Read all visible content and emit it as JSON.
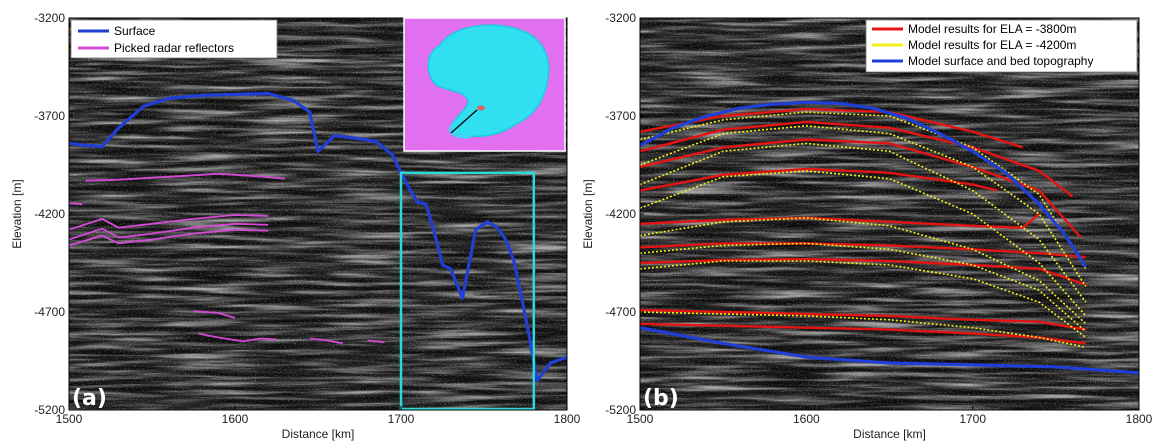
{
  "chart_data": [
    {
      "id": "a",
      "type": "line",
      "panel_label": "(a)",
      "xlabel": "Distance [km]",
      "ylabel": "Elevation [m]",
      "xlim": [
        1500,
        1800
      ],
      "ylim": [
        -5200,
        -3200
      ],
      "xticks": [
        "1500",
        "1600",
        "1700",
        "1800"
      ],
      "yticks": [
        "-3200",
        "-3700",
        "-4200",
        "-4700",
        "-5200"
      ],
      "legend_position": "top-left",
      "background": "radargram (grayscale)",
      "series": [
        {
          "name": "Surface",
          "color": "#1f3fd6",
          "x": [
            1500,
            1510,
            1520,
            1530,
            1545,
            1560,
            1580,
            1600,
            1620,
            1635,
            1645,
            1650,
            1660,
            1670,
            1685,
            1695,
            1700,
            1705,
            1710,
            1715,
            1720,
            1725,
            1730,
            1737,
            1745,
            1752,
            1758,
            1763,
            1768,
            1772,
            1777,
            1782,
            1790,
            1800
          ],
          "y": [
            -3840,
            -3850,
            -3855,
            -3760,
            -3650,
            -3610,
            -3595,
            -3590,
            -3585,
            -3620,
            -3680,
            -3880,
            -3800,
            -3810,
            -3830,
            -3900,
            -3990,
            -4070,
            -4140,
            -4150,
            -4290,
            -4460,
            -4480,
            -4630,
            -4280,
            -4240,
            -4270,
            -4330,
            -4440,
            -4600,
            -4810,
            -5050,
            -4960,
            -4930
          ]
        },
        {
          "name": "Picked radar reflectors",
          "color": "#d44ad4",
          "segments": [
            {
              "x": [
                1510,
                1530,
                1550,
                1570,
                1590,
                1610,
                1630
              ],
              "y": [
                -4030,
                -4025,
                -4015,
                -4005,
                -3995,
                -4005,
                -4020
              ]
            },
            {
              "x": [
                1500,
                1508
              ],
              "y": [
                -4145,
                -4150
              ]
            },
            {
              "x": [
                1500,
                1520,
                1530,
                1550,
                1575,
                1600,
                1620
              ],
              "y": [
                -4280,
                -4225,
                -4270,
                -4250,
                -4225,
                -4205,
                -4210
              ]
            },
            {
              "x": [
                1500,
                1520,
                1530,
                1550,
                1575,
                1600,
                1620
              ],
              "y": [
                -4330,
                -4275,
                -4320,
                -4300,
                -4270,
                -4250,
                -4255
              ]
            },
            {
              "x": [
                1500,
                1520,
                1530,
                1550,
                1575,
                1600,
                1620
              ],
              "y": [
                -4360,
                -4310,
                -4350,
                -4330,
                -4300,
                -4280,
                -4285
              ]
            },
            {
              "x": [
                1575,
                1590,
                1600
              ],
              "y": [
                -4695,
                -4705,
                -4730
              ]
            },
            {
              "x": [
                1578,
                1590,
                1605,
                1615,
                1625
              ],
              "y": [
                -4810,
                -4830,
                -4850,
                -4835,
                -4840
              ]
            },
            {
              "x": [
                1645,
                1655,
                1665
              ],
              "y": [
                -4835,
                -4845,
                -4860
              ]
            },
            {
              "x": [
                1680,
                1690
              ],
              "y": [
                -4845,
                -4855
              ]
            }
          ]
        }
      ],
      "highlight_box": {
        "x": [
          1700,
          1780
        ],
        "y": [
          -5200,
          -3990
        ],
        "color": "#2fd8d8"
      },
      "inset": {
        "description_color_land": "#e070f0",
        "description_color_ice": "#30e0f0"
      }
    },
    {
      "id": "b",
      "type": "line",
      "panel_label": "(b)",
      "xlabel": "Distance [km]",
      "ylabel": "Elevation [m]",
      "xlim": [
        1500,
        1800
      ],
      "ylim": [
        -5200,
        -3200
      ],
      "xticks": [
        "1500",
        "1600",
        "1700",
        "1800"
      ],
      "yticks": [
        "-3200",
        "-3700",
        "-4200",
        "-4700",
        "-5200"
      ],
      "legend_position": "top-right",
      "background": "radargram (grayscale)",
      "series": [
        {
          "name": "Model results for ELA = -3800m",
          "color": "#e41414",
          "layers": [
            {
              "x": [
                1500,
                1550,
                1600,
                1650,
                1700,
                1730
              ],
              "y": [
                -3780,
                -3700,
                -3665,
                -3680,
                -3780,
                -3860
              ]
            },
            {
              "x": [
                1500,
                1550,
                1600,
                1650,
                1700,
                1740,
                1760
              ],
              "y": [
                -3880,
                -3770,
                -3730,
                -3760,
                -3860,
                -3980,
                -4110
              ]
            },
            {
              "x": [
                1500,
                1550,
                1600,
                1650,
                1700,
                1740,
                1765
              ],
              "y": [
                -3960,
                -3860,
                -3820,
                -3840,
                -3960,
                -4080,
                -4320
              ]
            },
            {
              "x": [
                1500,
                1550,
                1600,
                1650,
                1700,
                1715
              ],
              "y": [
                -4080,
                -4000,
                -3970,
                -3990,
                -4050,
                -4080
              ]
            },
            {
              "x": [
                1500,
                1550,
                1600,
                1650,
                1700,
                1730,
                1740
              ],
              "y": [
                -4250,
                -4230,
                -4220,
                -4240,
                -4260,
                -4270,
                -4200
              ]
            },
            {
              "x": [
                1500,
                1550,
                1600,
                1650,
                1700,
                1740,
                1768
              ],
              "y": [
                -4370,
                -4350,
                -4350,
                -4360,
                -4380,
                -4400,
                -4420
              ]
            },
            {
              "x": [
                1500,
                1550,
                1600,
                1650,
                1700,
                1740,
                1768
              ],
              "y": [
                -4450,
                -4435,
                -4430,
                -4440,
                -4460,
                -4480,
                -4560
              ]
            },
            {
              "x": [
                1500,
                1550,
                1600,
                1650,
                1700,
                1740,
                1768
              ],
              "y": [
                -4690,
                -4700,
                -4710,
                -4720,
                -4740,
                -4750,
                -4790
              ]
            },
            {
              "x": [
                1500,
                1550,
                1600,
                1650,
                1700,
                1740,
                1768
              ],
              "y": [
                -4760,
                -4770,
                -4780,
                -4790,
                -4810,
                -4830,
                -4860
              ]
            }
          ]
        },
        {
          "name": "Model results for ELA = -4200m",
          "color": "#f2f21a",
          "layers": [
            {
              "x": [
                1500,
                1550,
                1600,
                1650,
                1700,
                1740,
                1768
              ],
              "y": [
                -3820,
                -3720,
                -3680,
                -3700,
                -3860,
                -4100,
                -4480
              ]
            },
            {
              "x": [
                1500,
                1550,
                1600,
                1650,
                1700,
                1740,
                1768
              ],
              "y": [
                -3950,
                -3790,
                -3750,
                -3790,
                -3960,
                -4200,
                -4570
              ]
            },
            {
              "x": [
                1500,
                1550,
                1600,
                1650,
                1700,
                1740,
                1768
              ],
              "y": [
                -4050,
                -3880,
                -3840,
                -3880,
                -4080,
                -4330,
                -4650
              ]
            },
            {
              "x": [
                1500,
                1550,
                1600,
                1650,
                1700,
                1740,
                1768
              ],
              "y": [
                -4170,
                -4010,
                -3980,
                -4020,
                -4200,
                -4450,
                -4720
              ]
            },
            {
              "x": [
                1500,
                1550,
                1600,
                1650,
                1700,
                1740,
                1768
              ],
              "y": [
                -4310,
                -4240,
                -4220,
                -4260,
                -4380,
                -4540,
                -4760
              ]
            },
            {
              "x": [
                1500,
                1550,
                1600,
                1650,
                1700,
                1740,
                1768
              ],
              "y": [
                -4400,
                -4360,
                -4350,
                -4380,
                -4460,
                -4590,
                -4800
              ]
            },
            {
              "x": [
                1500,
                1550,
                1600,
                1650,
                1700,
                1740,
                1768
              ],
              "y": [
                -4480,
                -4440,
                -4440,
                -4460,
                -4530,
                -4650,
                -4830
              ]
            },
            {
              "x": [
                1500,
                1550,
                1600,
                1650,
                1700,
                1740,
                1768
              ],
              "y": [
                -4700,
                -4710,
                -4720,
                -4740,
                -4780,
                -4830,
                -4880
              ]
            }
          ]
        },
        {
          "name": "Model surface and bed topography",
          "color": "#1f3fd6",
          "layers": [
            {
              "x": [
                1500,
                1520,
                1540,
                1560,
                1580,
                1600,
                1620,
                1640,
                1660,
                1680,
                1700,
                1720,
                1740,
                1755,
                1768
              ],
              "y": [
                -3850,
                -3760,
                -3700,
                -3660,
                -3640,
                -3630,
                -3635,
                -3660,
                -3710,
                -3790,
                -3880,
                -3990,
                -4150,
                -4300,
                -4470
              ]
            },
            {
              "x": [
                1500,
                1550,
                1600,
                1650,
                1700,
                1750,
                1800
              ],
              "y": [
                -4780,
                -4860,
                -4930,
                -4960,
                -4970,
                -4980,
                -5010
              ]
            }
          ]
        }
      ]
    }
  ]
}
